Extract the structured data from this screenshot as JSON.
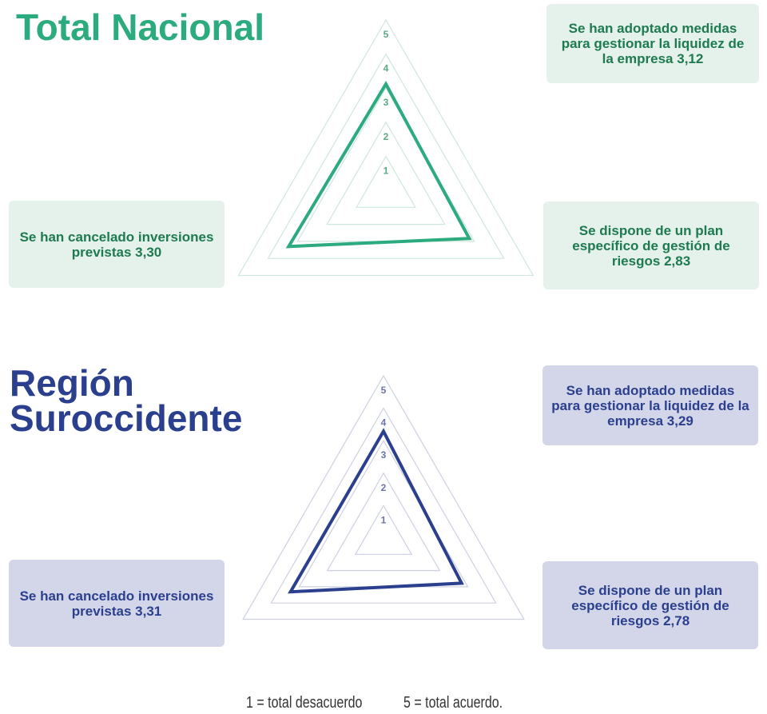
{
  "chart_data": [
    {
      "type": "radar",
      "title": "Total Nacional",
      "categories": [
        "Se han adoptado medidas para gestionar la liquidez de la empresa",
        "Se dispone de un plan específico de gestión de riesgos",
        "Se han cancelado inversiones previstas"
      ],
      "values": [
        3.12,
        2.83,
        3.3
      ],
      "value_labels": [
        "3,12",
        "2,83",
        "3,30"
      ],
      "color": "#2bab7e",
      "rlim": [
        0,
        5
      ],
      "rticks": [
        1,
        2,
        3,
        4,
        5
      ]
    },
    {
      "type": "radar",
      "title": "Región Suroccidente",
      "categories": [
        "Se han adoptado medidas para gestionar la liquidez de la empresa",
        "Se dispone de un plan específico de gestión de riesgos",
        "Se han cancelado inversiones previstas"
      ],
      "values": [
        3.29,
        2.78,
        3.31
      ],
      "value_labels": [
        "3,29",
        "2,78",
        "3,31"
      ],
      "color": "#2b3f8f",
      "rlim": [
        0,
        5
      ],
      "rticks": [
        1,
        2,
        3,
        4,
        5
      ]
    }
  ],
  "footer": [
    "1 = total desacuerdo",
    "5 = total acuerdo."
  ]
}
